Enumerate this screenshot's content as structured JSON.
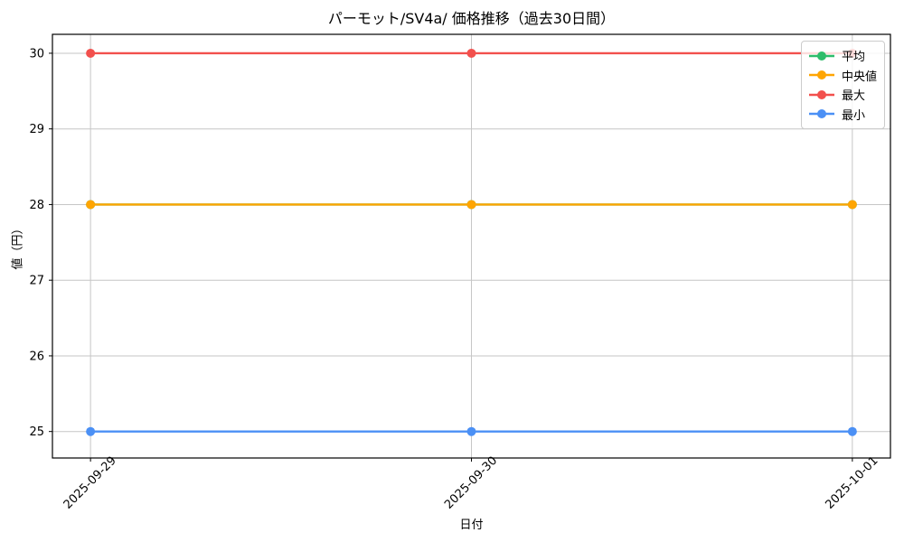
{
  "chart_data": {
    "type": "line",
    "title": "パーモット/SV4a/ 価格推移（過去30日間）",
    "xlabel": "日付",
    "ylabel": "値（円）",
    "x": [
      "2025-09-29",
      "2025-09-30",
      "2025-10-01"
    ],
    "series": [
      {
        "name": "平均",
        "color": "#2ebd6b",
        "values": [
          28,
          28,
          28
        ]
      },
      {
        "name": "中央値",
        "color": "#ffa502",
        "values": [
          28,
          28,
          28
        ]
      },
      {
        "name": "最大",
        "color": "#f2504d",
        "values": [
          30,
          30,
          30
        ]
      },
      {
        "name": "最小",
        "color": "#4b90f5",
        "values": [
          25,
          25,
          25
        ]
      }
    ],
    "yticks": [
      25,
      26,
      27,
      28,
      29,
      30
    ],
    "ylim": [
      24.65,
      30.25
    ],
    "xlim": [
      -0.1,
      2.1
    ],
    "grid": true,
    "grid_color": "#c6c6c6",
    "legend_position": "upper right"
  }
}
